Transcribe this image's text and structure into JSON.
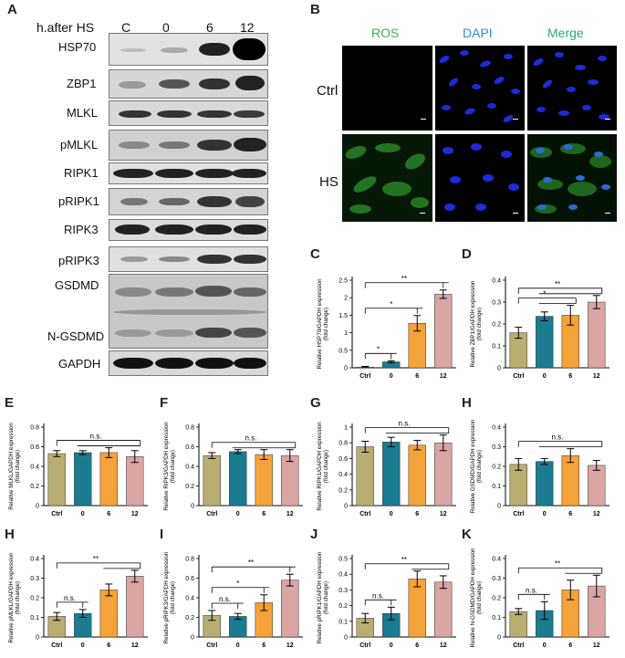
{
  "panels": {
    "A": "A",
    "B": "B",
    "C": "C",
    "D": "D",
    "E": "E",
    "F": "F",
    "G": "G",
    "H1": "H",
    "H2": "H",
    "I": "I",
    "J": "J",
    "K": "K"
  },
  "western": {
    "header_label": "h.after HS",
    "lanes": [
      "C",
      "0",
      "6",
      "12"
    ],
    "proteins": [
      "HSP70",
      "ZBP1",
      "MLKL",
      "pMLKL",
      "RIPK1",
      "pRIPK1",
      "RIPK3",
      "pRIPK3",
      "GSDMD",
      "N-GSDMD",
      "GAPDH"
    ]
  },
  "micro": {
    "columns": [
      "ROS",
      "DAPI",
      "Merge"
    ],
    "column_colors": [
      "#3db54a",
      "#2f8fd8",
      "#2ea58a"
    ],
    "rows": [
      "Ctrl",
      "HS"
    ]
  },
  "chart_data": [
    {
      "panel": "C",
      "type": "bar",
      "ylabel": "Relative HSP70/GAPDH expression\n(fold change)",
      "categories": [
        "Ctrl",
        "0",
        "6",
        "12"
      ],
      "values": [
        0.02,
        0.17,
        1.27,
        2.1
      ],
      "errors": [
        0.02,
        0.03,
        0.22,
        0.12
      ],
      "ylim": [
        0,
        2.5
      ],
      "yticks": [
        0,
        0.5,
        1.0,
        1.5,
        2.0,
        2.5
      ],
      "brackets": [
        {
          "from": 0,
          "to": 1,
          "label": "*"
        },
        {
          "from": 0,
          "to": 2,
          "label": "*"
        },
        {
          "from": 0,
          "to": 3,
          "label": "**"
        }
      ]
    },
    {
      "panel": "D",
      "type": "bar",
      "ylabel": "Relative ZBP1/GAPDH expression\n(fold change)",
      "categories": [
        "Ctrl",
        "0",
        "6",
        "12"
      ],
      "values": [
        0.16,
        0.235,
        0.24,
        0.3
      ],
      "errors": [
        0.025,
        0.02,
        0.045,
        0.03
      ],
      "ylim": [
        0,
        0.4
      ],
      "yticks": [
        0,
        0.1,
        0.2,
        0.3,
        0.4
      ],
      "brackets": [
        {
          "from": 0,
          "to": [
            1,
            2
          ],
          "label": "*"
        },
        {
          "from": 0,
          "to": [
            1,
            2,
            3
          ],
          "label": "**"
        }
      ]
    },
    {
      "panel": "E",
      "type": "bar",
      "ylabel": "Relative MLKL/GAPDH expression\n(fold change)",
      "categories": [
        "Ctrl",
        "0",
        "6",
        "12"
      ],
      "values": [
        0.53,
        0.54,
        0.54,
        0.5
      ],
      "errors": [
        0.03,
        0.02,
        0.05,
        0.06
      ],
      "ylim": [
        0,
        0.8
      ],
      "yticks": [
        0,
        0.2,
        0.4,
        0.6,
        0.8
      ],
      "brackets": [
        {
          "from": 0,
          "to": [
            1,
            2,
            3
          ],
          "label": "n.s."
        }
      ]
    },
    {
      "panel": "F",
      "type": "bar",
      "ylabel": "Relative RIPK3/GAPDH expression\n(fold change)",
      "categories": [
        "Ctrl",
        "0",
        "6",
        "12"
      ],
      "values": [
        0.51,
        0.55,
        0.52,
        0.51
      ],
      "errors": [
        0.03,
        0.02,
        0.05,
        0.06
      ],
      "ylim": [
        0,
        0.8
      ],
      "yticks": [
        0,
        0.2,
        0.4,
        0.6,
        0.8
      ],
      "brackets": [
        {
          "from": 0,
          "to": [
            1,
            2,
            3
          ],
          "label": "n.s."
        }
      ]
    },
    {
      "panel": "G",
      "type": "bar",
      "ylabel": "Relative RIPK1/GAPDH expression\n(fold change)",
      "categories": [
        "Ctrl",
        "0",
        "6",
        "12"
      ],
      "values": [
        0.75,
        0.81,
        0.77,
        0.8
      ],
      "errors": [
        0.07,
        0.06,
        0.06,
        0.1
      ],
      "ylim": [
        0,
        1.0
      ],
      "yticks": [
        0,
        0.2,
        0.4,
        0.6,
        0.8,
        1.0
      ],
      "brackets": [
        {
          "from": 0,
          "to": [
            1,
            2,
            3
          ],
          "label": "n.s."
        }
      ]
    },
    {
      "panel": "H1",
      "type": "bar",
      "ylabel": "Relative GSDMD/GAPDH expression\n(fold change)",
      "categories": [
        "Ctrl",
        "0",
        "6",
        "12"
      ],
      "values": [
        0.21,
        0.225,
        0.255,
        0.205
      ],
      "errors": [
        0.03,
        0.015,
        0.035,
        0.025
      ],
      "ylim": [
        0,
        0.4
      ],
      "yticks": [
        0,
        0.1,
        0.2,
        0.3,
        0.4
      ],
      "brackets": [
        {
          "from": 0,
          "to": [
            1,
            2,
            3
          ],
          "label": "n.s."
        }
      ]
    },
    {
      "panel": "H2",
      "type": "bar",
      "ylabel": "Relative pMLKL/GAPDH expression\n(fold change)",
      "categories": [
        "Ctrl",
        "0",
        "6",
        "12"
      ],
      "values": [
        0.105,
        0.12,
        0.24,
        0.31
      ],
      "errors": [
        0.02,
        0.02,
        0.03,
        0.03
      ],
      "ylim": [
        0,
        0.4
      ],
      "yticks": [
        0,
        0.1,
        0.2,
        0.3,
        0.4
      ],
      "brackets": [
        {
          "from": 0,
          "to": 1,
          "label": "n.s."
        },
        {
          "from": 0,
          "to": [
            2,
            3
          ],
          "label": "**"
        }
      ]
    },
    {
      "panel": "I",
      "type": "bar",
      "ylabel": "Relative pRIPK3/GAPDH expression\n(fold change)",
      "categories": [
        "Ctrl",
        "0",
        "6",
        "12"
      ],
      "values": [
        0.22,
        0.21,
        0.35,
        0.58
      ],
      "errors": [
        0.05,
        0.03,
        0.08,
        0.06
      ],
      "ylim": [
        0,
        0.8
      ],
      "yticks": [
        0,
        0.2,
        0.4,
        0.6,
        0.8
      ],
      "brackets": [
        {
          "from": 0,
          "to": 1,
          "label": "n.s."
        },
        {
          "from": 0,
          "to": 2,
          "label": "*"
        },
        {
          "from": 0,
          "to": 3,
          "label": "**"
        }
      ]
    },
    {
      "panel": "J",
      "type": "bar",
      "ylabel": "Relative pRIPK1/GAPDH expression\n(fold change)",
      "categories": [
        "Ctrl",
        "0",
        "6",
        "12"
      ],
      "values": [
        0.12,
        0.15,
        0.37,
        0.35
      ],
      "errors": [
        0.03,
        0.04,
        0.05,
        0.04
      ],
      "ylim": [
        0,
        0.5
      ],
      "yticks": [
        0,
        0.1,
        0.2,
        0.3,
        0.4,
        0.5
      ],
      "brackets": [
        {
          "from": 0,
          "to": 1,
          "label": "n.s."
        },
        {
          "from": 0,
          "to": [
            2,
            3
          ],
          "label": "**"
        }
      ]
    },
    {
      "panel": "K",
      "type": "bar",
      "ylabel": "Relative N-GSDMD/GAPDH expression\n(fold change)",
      "categories": [
        "Ctrl",
        "0",
        "6",
        "12"
      ],
      "values": [
        0.13,
        0.135,
        0.24,
        0.26
      ],
      "errors": [
        0.015,
        0.045,
        0.05,
        0.055
      ],
      "ylim": [
        0,
        0.4
      ],
      "yticks": [
        0,
        0.1,
        0.2,
        0.3,
        0.4
      ],
      "brackets": [
        {
          "from": 0,
          "to": 1,
          "label": "n.s."
        },
        {
          "from": 0,
          "to": [
            2,
            3
          ],
          "label": "**"
        }
      ]
    }
  ],
  "bar_colors": [
    "#b9ad72",
    "#1b7b91",
    "#f4a23a",
    "#d9a6a4"
  ]
}
